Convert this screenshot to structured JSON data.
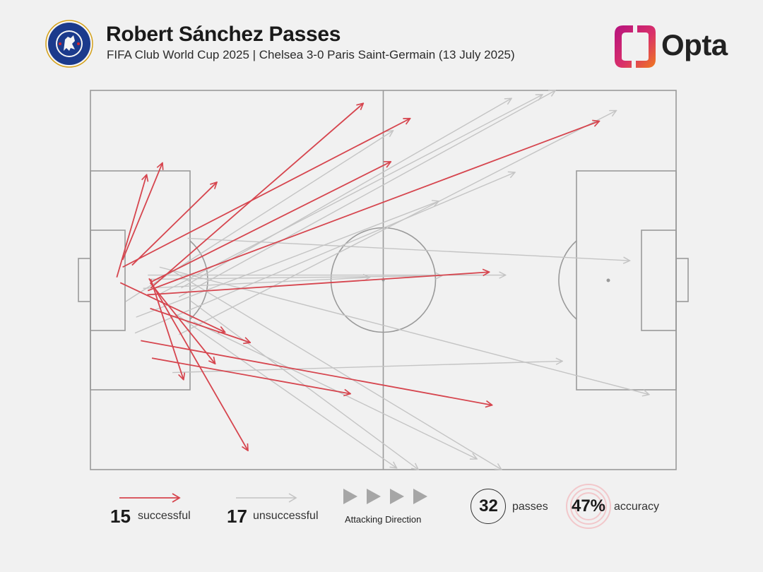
{
  "header": {
    "title": "Robert Sánchez Passes",
    "subtitle": "FIFA Club World Cup 2025 | Chelsea 3-0 Paris Saint-Germain (13 July 2025)",
    "brand": "Opta"
  },
  "colors": {
    "successful": "#d6454e",
    "unsuccessful": "#c4c4c4",
    "pitch_lines": "#9a9a9a",
    "background": "#f1f1f1",
    "badge_blue": "#1b3a8c",
    "opta_gradient": [
      "#c2148a",
      "#f0591f"
    ]
  },
  "icons": {
    "club_badge": "chelsea-crest-icon",
    "brand_logo": "opta-logo-icon",
    "direction": "play-triangle-icon"
  },
  "legend": {
    "successful_count": "15",
    "successful_label": "successful",
    "unsuccessful_count": "17",
    "unsuccessful_label": "unsuccessful",
    "direction_label": "Attacking Direction",
    "passes_count": "32",
    "passes_label": "passes",
    "accuracy_value": "47%",
    "accuracy_label": "accuracy"
  },
  "chart_data": {
    "type": "pass-map",
    "pitch": {
      "length": 100,
      "width": 100
    },
    "successful": [
      {
        "x1": 10.0,
        "y1": 49.6,
        "x2": 26.9,
        "y2": 95.0
      },
      {
        "x1": 8.6,
        "y1": 66.0,
        "x2": 68.6,
        "y2": 83.0
      },
      {
        "x1": 10.2,
        "y1": 57.5,
        "x2": 27.3,
        "y2": 66.5
      },
      {
        "x1": 10.5,
        "y1": 70.6,
        "x2": 44.4,
        "y2": 80.0
      },
      {
        "x1": 9.7,
        "y1": 53.9,
        "x2": 68.1,
        "y2": 47.9
      },
      {
        "x1": 5.1,
        "y1": 50.7,
        "x2": 23.0,
        "y2": 63.8
      },
      {
        "x1": 4.5,
        "y1": 49.3,
        "x2": 9.6,
        "y2": 22.2
      },
      {
        "x1": 5.5,
        "y1": 44.7,
        "x2": 12.3,
        "y2": 19.1
      },
      {
        "x1": 7.1,
        "y1": 46.1,
        "x2": 21.6,
        "y2": 24.2
      },
      {
        "x1": 5.5,
        "y1": 46.6,
        "x2": 54.6,
        "y2": 7.4
      },
      {
        "x1": 10.5,
        "y1": 50.4,
        "x2": 51.3,
        "y2": 18.8
      },
      {
        "x1": 10.3,
        "y1": 52.1,
        "x2": 46.6,
        "y2": 3.4
      },
      {
        "x1": 9.8,
        "y1": 52.8,
        "x2": 86.9,
        "y2": 8.1
      },
      {
        "x1": 10.3,
        "y1": 49.8,
        "x2": 15.9,
        "y2": 76.3
      },
      {
        "x1": 10.2,
        "y1": 50.7,
        "x2": 21.3,
        "y2": 72.1
      }
    ],
    "unsuccessful": [
      {
        "x1": 14.0,
        "y1": 74.4,
        "x2": 80.6,
        "y2": 71.4
      },
      {
        "x1": 9.0,
        "y1": 52.2,
        "x2": 47.7,
        "y2": 49.3
      },
      {
        "x1": 10.1,
        "y1": 49.8,
        "x2": 60.0,
        "y2": 48.9
      },
      {
        "x1": 9.8,
        "y1": 48.7,
        "x2": 70.9,
        "y2": 48.7
      },
      {
        "x1": 16.6,
        "y1": 39.0,
        "x2": 92.1,
        "y2": 44.9
      },
      {
        "x1": 11.8,
        "y1": 46.6,
        "x2": 95.4,
        "y2": 80.2
      },
      {
        "x1": 14.1,
        "y1": 47.7,
        "x2": 70.2,
        "y2": 100.0
      },
      {
        "x1": 12.1,
        "y1": 53.5,
        "x2": 77.2,
        "y2": 1.1
      },
      {
        "x1": 17.1,
        "y1": 55.5,
        "x2": 56.0,
        "y2": 100.0
      },
      {
        "x1": 14.7,
        "y1": 59.1,
        "x2": 52.3,
        "y2": 99.6
      },
      {
        "x1": 6.0,
        "y1": 55.7,
        "x2": 51.7,
        "y2": 10.6
      },
      {
        "x1": 7.8,
        "y1": 59.8,
        "x2": 59.5,
        "y2": 29.2
      },
      {
        "x1": 7.6,
        "y1": 64.0,
        "x2": 72.5,
        "y2": 21.6
      },
      {
        "x1": 15.1,
        "y1": 64.4,
        "x2": 89.8,
        "y2": 5.3
      },
      {
        "x1": 17.6,
        "y1": 61.0,
        "x2": 66.0,
        "y2": 97.2
      },
      {
        "x1": 15.1,
        "y1": 54.5,
        "x2": 79.4,
        "y2": 0.0
      },
      {
        "x1": 15.5,
        "y1": 52.1,
        "x2": 71.9,
        "y2": 2.1
      }
    ]
  }
}
